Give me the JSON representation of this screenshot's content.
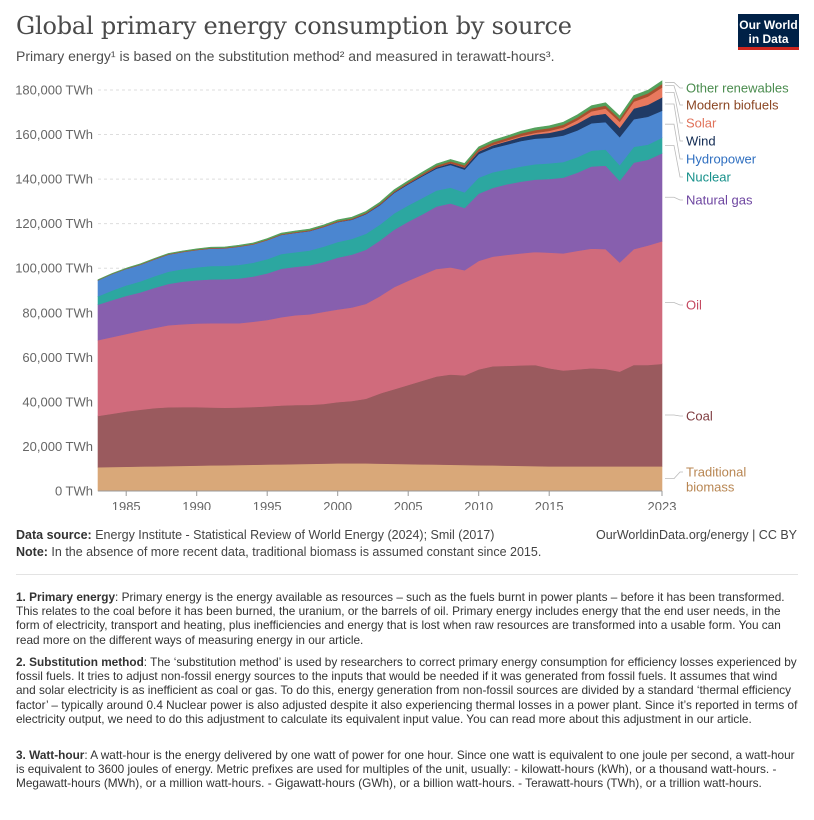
{
  "header": {
    "title": "Global primary energy consumption by source",
    "subtitle": "Primary energy¹ is based on the substitution method² and measured in terawatt-hours³.",
    "logo_line1": "Our World",
    "logo_line2": "in Data"
  },
  "chart_data": {
    "type": "area",
    "stacked": true,
    "x": [
      1983,
      1984,
      1985,
      1986,
      1987,
      1988,
      1989,
      1990,
      1991,
      1992,
      1993,
      1994,
      1995,
      1996,
      1997,
      1998,
      1999,
      2000,
      2001,
      2002,
      2003,
      2004,
      2005,
      2006,
      2007,
      2008,
      2009,
      2010,
      2011,
      2012,
      2013,
      2014,
      2015,
      2016,
      2017,
      2018,
      2019,
      2020,
      2021,
      2022,
      2023
    ],
    "xticks": [
      1985,
      1990,
      1995,
      2000,
      2005,
      2010,
      2015,
      2023
    ],
    "ylim": [
      0,
      180000
    ],
    "yticks": [
      0,
      20000,
      40000,
      60000,
      80000,
      100000,
      120000,
      140000,
      160000,
      180000
    ],
    "ytick_labels": [
      "0 TWh",
      "20,000 TWh",
      "40,000 TWh",
      "60,000 TWh",
      "80,000 TWh",
      "100,000 TWh",
      "120,000 TWh",
      "140,000 TWh",
      "160,000 TWh",
      "180,000 TWh"
    ],
    "series": [
      {
        "name": "Traditional biomass",
        "color": "#d9a879",
        "values": [
          10700,
          10800,
          10900,
          11000,
          11100,
          11200,
          11300,
          11400,
          11500,
          11600,
          11700,
          11800,
          11900,
          12000,
          12100,
          12200,
          12300,
          12400,
          12400,
          12400,
          12300,
          12200,
          12100,
          12000,
          11900,
          11800,
          11700,
          11600,
          11500,
          11400,
          11300,
          11200,
          11100,
          11100,
          11100,
          11100,
          11100,
          11100,
          11100,
          11100,
          11100
        ]
      },
      {
        "name": "Coal",
        "color": "#9a5a5e",
        "values": [
          23000,
          23900,
          24800,
          25500,
          26100,
          26400,
          26400,
          26300,
          26000,
          25800,
          25800,
          25900,
          26100,
          26400,
          26500,
          26500,
          26800,
          27500,
          28000,
          29000,
          31500,
          33500,
          35500,
          37500,
          39500,
          40500,
          40200,
          43000,
          44500,
          44800,
          45100,
          45400,
          44000,
          43000,
          43500,
          44000,
          43700,
          42500,
          45500,
          45500,
          46000
        ]
      },
      {
        "name": "Oil",
        "color": "#d06b7c",
        "values": [
          34000,
          34400,
          34800,
          35400,
          36000,
          36800,
          37200,
          37500,
          37800,
          37900,
          37800,
          38300,
          38800,
          39600,
          40300,
          40600,
          41300,
          41600,
          42000,
          42600,
          43700,
          45800,
          46800,
          47600,
          48300,
          48100,
          47200,
          48700,
          49200,
          49800,
          50300,
          50700,
          51900,
          52600,
          53200,
          53700,
          53800,
          49000,
          52000,
          53600,
          55000
        ]
      },
      {
        "name": "Natural gas",
        "color": "#875fae",
        "values": [
          16000,
          16600,
          17100,
          17300,
          18000,
          18600,
          19100,
          19400,
          19700,
          19800,
          20100,
          20300,
          20900,
          21800,
          21700,
          22000,
          22400,
          23300,
          23700,
          24300,
          25000,
          25800,
          26500,
          27100,
          28000,
          28700,
          28000,
          30200,
          30900,
          31700,
          32200,
          32500,
          33100,
          34000,
          35100,
          36900,
          37500,
          36700,
          38800,
          38500,
          39500
        ]
      },
      {
        "name": "Nuclear",
        "color": "#2ca7a0",
        "values": [
          3700,
          4300,
          4700,
          4900,
          5200,
          5500,
          5600,
          5800,
          6000,
          6000,
          6100,
          6200,
          6400,
          6600,
          6600,
          6700,
          6900,
          7000,
          7100,
          7200,
          7100,
          7300,
          7300,
          7300,
          7200,
          7100,
          7000,
          7200,
          7000,
          6700,
          6800,
          6900,
          7000,
          7000,
          7000,
          7100,
          7200,
          7000,
          7100,
          6800,
          7000
        ]
      },
      {
        "name": "Hydropower",
        "color": "#4b86d0",
        "values": [
          7200,
          7400,
          7400,
          7500,
          7600,
          7700,
          7700,
          7800,
          7900,
          7900,
          8200,
          8200,
          8500,
          8600,
          8700,
          8700,
          8800,
          8900,
          8600,
          8800,
          8800,
          9200,
          9500,
          9800,
          9800,
          10200,
          10200,
          10600,
          10800,
          11100,
          11400,
          11500,
          11500,
          11900,
          12000,
          12300,
          12300,
          12600,
          12400,
          12500,
          12100
        ]
      },
      {
        "name": "Wind",
        "color": "#203b66",
        "values": [
          0,
          0,
          0,
          0,
          0,
          0,
          0,
          0,
          0,
          0,
          10,
          20,
          30,
          40,
          60,
          80,
          100,
          120,
          160,
          200,
          240,
          290,
          360,
          450,
          570,
          720,
          890,
          1100,
          1290,
          1500,
          1750,
          1920,
          2200,
          2570,
          3050,
          3400,
          3790,
          4200,
          4800,
          5400,
          6000
        ]
      },
      {
        "name": "Solar",
        "color": "#e8795e",
        "values": [
          0,
          0,
          0,
          0,
          0,
          0,
          0,
          0,
          0,
          0,
          0,
          0,
          0,
          0,
          0,
          0,
          0,
          0,
          0,
          0,
          0,
          0,
          0,
          20,
          40,
          60,
          100,
          150,
          260,
          390,
          530,
          680,
          850,
          1050,
          1530,
          1950,
          2300,
          2700,
          3100,
          3700,
          4500
        ]
      },
      {
        "name": "Modern biofuels",
        "color": "#a94f2f",
        "values": [
          100,
          120,
          150,
          170,
          190,
          200,
          210,
          220,
          230,
          240,
          250,
          260,
          280,
          300,
          320,
          330,
          350,
          370,
          380,
          400,
          430,
          470,
          520,
          610,
          750,
          870,
          950,
          1050,
          1060,
          1080,
          1150,
          1220,
          1230,
          1230,
          1260,
          1310,
          1360,
          1300,
          1390,
          1450,
          1500
        ]
      },
      {
        "name": "Other renewables",
        "color": "#54a15c",
        "values": [
          150,
          170,
          200,
          220,
          240,
          260,
          280,
          300,
          320,
          340,
          360,
          380,
          400,
          430,
          460,
          480,
          500,
          530,
          560,
          590,
          620,
          660,
          700,
          730,
          760,
          790,
          830,
          870,
          900,
          940,
          980,
          1020,
          1060,
          1100,
          1150,
          1200,
          1240,
          1270,
          1320,
          1360,
          1400
        ]
      }
    ]
  },
  "legend_labels": [
    {
      "label": "Other renewables",
      "color": "#4a8c4e"
    },
    {
      "label": "Modern biofuels",
      "color": "#8b4623"
    },
    {
      "label": "Solar",
      "color": "#e0725a"
    },
    {
      "label": "Wind",
      "color": "#102a52"
    },
    {
      "label": "Hydropower",
      "color": "#2f6fc0"
    },
    {
      "label": "Nuclear",
      "color": "#16908a"
    },
    {
      "label": "Natural gas",
      "color": "#6d45a0"
    },
    {
      "label": "Oil",
      "color": "#c44960"
    },
    {
      "label": "Coal",
      "color": "#7e3c40"
    },
    {
      "label": "Traditional",
      "color": "#b88652"
    },
    {
      "label": "biomass",
      "color": "#b88652"
    }
  ],
  "meta": {
    "source_label": "Data source:",
    "source_text": " Energy Institute - Statistical Review of World Energy (2024); Smil (2017)",
    "url_license": "OurWorldinData.org/energy | CC BY",
    "note_label": "Note:",
    "note_text": " In the absence of more recent data, traditional biomass is assumed constant since 2015."
  },
  "notes": [
    {
      "term": "1. Primary energy",
      "text": ": Primary energy is the energy available as resources – such as the fuels burnt in power plants – before it has been transformed. This relates to the coal before it has been burned, the uranium, or the barrels of oil. Primary energy includes energy that the end user needs, in the form of electricity, transport and heating, plus inefficiencies and energy that is lost when raw resources are transformed into a usable form. You can read more on the different ways of measuring energy in our article."
    },
    {
      "term": "2. Substitution method",
      "text": ": The ‘substitution method’ is used by researchers to correct primary energy consumption for efficiency losses experienced by fossil fuels. It tries to adjust non-fossil energy sources to the inputs that would be needed if it was generated from fossil fuels. It assumes that wind and solar electricity is as inefficient as coal or gas. To do this, energy generation from non-fossil sources are divided by a standard ‘thermal efficiency factor’ – typically around 0.4 Nuclear power is also adjusted despite it also experiencing thermal losses in a power plant. Since it’s reported in terms of electricity output, we need to do this adjustment to calculate its equivalent input value. You can read more about this adjustment in our article."
    },
    {
      "term": "3. Watt-hour",
      "text": ": A watt-hour is the energy delivered by one watt of power for one hour. Since one watt is equivalent to one joule per second, a watt-hour is equivalent to 3600 joules of energy. Metric prefixes are used for multiples of the unit, usually: - kilowatt-hours (kWh), or a thousand watt-hours. - Megawatt-hours (MWh), or a million watt-hours. - Gigawatt-hours (GWh), or a billion watt-hours. - Terawatt-hours (TWh), or a trillion watt-hours."
    }
  ]
}
